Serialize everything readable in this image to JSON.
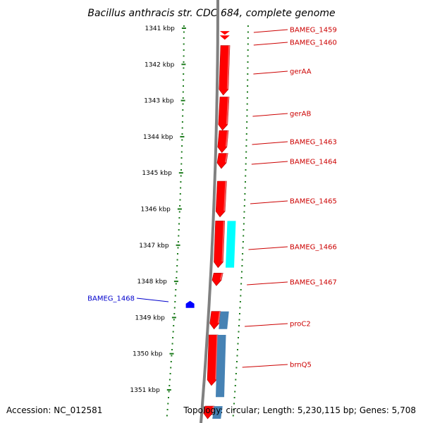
{
  "title": "Bacillus anthracis str. CDC 684, complete genome",
  "accession": "Accession: NC_012581",
  "topology": "Topology: circular; Length: 5,230,115 bp; Genes: 5,708",
  "colors": {
    "backbone": "#808080",
    "ruler": "#1a7a1a",
    "forward_gene": "#ff0000",
    "reverse_gene": "#0000ff",
    "rna_cyan": "#00ffff",
    "steel_blue": "#4682b4",
    "forward_label": "#cc0000",
    "reverse_label": "#0000cc"
  },
  "ruler_ticks": [
    {
      "label": "1341 kbp",
      "kbp": 1341
    },
    {
      "label": "1342 kbp",
      "kbp": 1342
    },
    {
      "label": "1343 kbp",
      "kbp": 1343
    },
    {
      "label": "1344 kbp",
      "kbp": 1344
    },
    {
      "label": "1345 kbp",
      "kbp": 1345
    },
    {
      "label": "1346 kbp",
      "kbp": 1346
    },
    {
      "label": "1347 kbp",
      "kbp": 1347
    },
    {
      "label": "1348 kbp",
      "kbp": 1348
    },
    {
      "label": "1349 kbp",
      "kbp": 1349
    },
    {
      "label": "1350 kbp",
      "kbp": 1350
    },
    {
      "label": "1351 kbp",
      "kbp": 1351
    }
  ],
  "genes": [
    {
      "name": "BAMEG_1459",
      "strand": "forward",
      "start_kbp": 1341.08,
      "end_kbp": 1341.18
    },
    {
      "name": "BAMEG_1460",
      "strand": "forward",
      "start_kbp": 1341.2,
      "end_kbp": 1341.32
    },
    {
      "name": "gerAA",
      "strand": "forward",
      "start_kbp": 1341.48,
      "end_kbp": 1342.85
    },
    {
      "name": "gerAB",
      "strand": "forward",
      "start_kbp": 1342.9,
      "end_kbp": 1343.82
    },
    {
      "name": "BAMEG_1463",
      "strand": "forward",
      "start_kbp": 1343.83,
      "end_kbp": 1344.44
    },
    {
      "name": "BAMEG_1464",
      "strand": "forward",
      "start_kbp": 1344.46,
      "end_kbp": 1344.88
    },
    {
      "name": "BAMEG_1465",
      "strand": "forward",
      "start_kbp": 1345.23,
      "end_kbp": 1346.22
    },
    {
      "name": "BAMEG_1466",
      "strand": "forward",
      "start_kbp": 1346.33,
      "end_kbp": 1347.62
    },
    {
      "name": "BAMEG_1467",
      "strand": "forward",
      "start_kbp": 1347.77,
      "end_kbp": 1348.12
    },
    {
      "name": "BAMEG_1468",
      "strand": "reverse",
      "start_kbp": 1348.55,
      "end_kbp": 1348.72
    },
    {
      "name": "proC2",
      "strand": "forward",
      "start_kbp": 1348.83,
      "end_kbp": 1349.32
    },
    {
      "name": "brnQ5",
      "strand": "forward",
      "start_kbp": 1349.48,
      "end_kbp": 1350.88
    }
  ],
  "unlabeled_features": [
    {
      "name": "cyan feature",
      "color": "cyan",
      "start_kbp": 1346.33,
      "end_kbp": 1347.62
    },
    {
      "name": "steel blue feature",
      "color": "steel",
      "start_kbp": 1348.83,
      "end_kbp": 1349.32
    },
    {
      "name": "steel blue feature",
      "color": "steel",
      "start_kbp": 1349.48,
      "end_kbp": 1351.2
    },
    {
      "name": "red feature",
      "color": "red",
      "start_kbp": 1351.45,
      "end_kbp": 1351.8
    },
    {
      "name": "steel blue feature",
      "color": "steel",
      "start_kbp": 1351.45,
      "end_kbp": 1351.8
    }
  ]
}
